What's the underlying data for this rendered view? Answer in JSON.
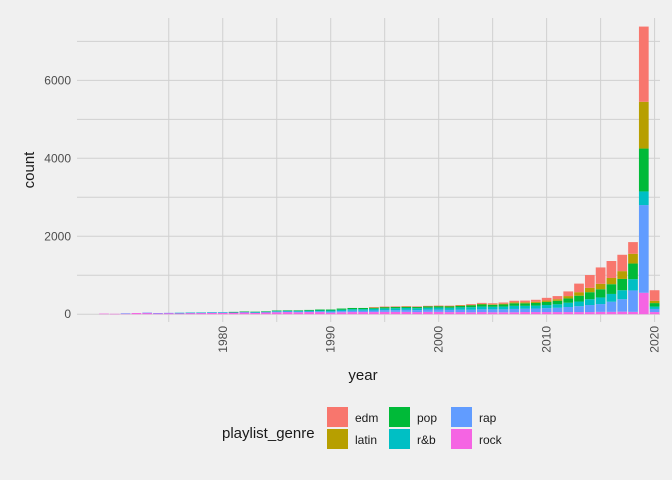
{
  "chart_data": {
    "type": "bar",
    "stacked": true,
    "xlabel": "year",
    "ylabel": "count",
    "xlim": [
      1966.5,
      2020.5
    ],
    "ylim": [
      -200,
      7600
    ],
    "x_ticks": [
      1980,
      1990,
      2000,
      2010,
      2020
    ],
    "y_ticks": [
      0,
      2000,
      4000,
      6000
    ],
    "grid": true,
    "legend_title": "playlist_genre",
    "legend_position": "bottom",
    "x": [
      1969,
      1970,
      1971,
      1972,
      1973,
      1974,
      1975,
      1976,
      1977,
      1978,
      1979,
      1980,
      1981,
      1982,
      1983,
      1984,
      1985,
      1986,
      1987,
      1988,
      1989,
      1990,
      1991,
      1992,
      1993,
      1994,
      1995,
      1996,
      1997,
      1998,
      1999,
      2000,
      2001,
      2002,
      2003,
      2004,
      2005,
      2006,
      2007,
      2008,
      2009,
      2010,
      2011,
      2012,
      2013,
      2014,
      2015,
      2016,
      2017,
      2018,
      2019,
      2020
    ],
    "series": [
      {
        "name": "rock",
        "color": "#F564E3",
        "values": [
          15,
          10,
          20,
          30,
          35,
          25,
          30,
          30,
          35,
          35,
          40,
          40,
          45,
          45,
          35,
          45,
          50,
          55,
          50,
          55,
          55,
          40,
          50,
          55,
          55,
          55,
          60,
          60,
          60,
          55,
          60,
          60,
          55,
          55,
          50,
          55,
          50,
          50,
          50,
          55,
          55,
          55,
          55,
          55,
          55,
          55,
          60,
          60,
          65,
          60,
          550,
          55
        ]
      },
      {
        "name": "rap",
        "color": "#619CFF",
        "values": [
          0,
          0,
          2,
          0,
          5,
          5,
          5,
          5,
          5,
          5,
          5,
          5,
          5,
          10,
          10,
          10,
          15,
          15,
          15,
          15,
          20,
          25,
          30,
          35,
          35,
          40,
          45,
          45,
          50,
          50,
          55,
          55,
          55,
          60,
          65,
          70,
          75,
          75,
          85,
          85,
          90,
          100,
          110,
          130,
          150,
          180,
          200,
          260,
          320,
          550,
          2250,
          80
        ]
      },
      {
        "name": "r&b",
        "color": "#00BFC4",
        "values": [
          0,
          0,
          0,
          0,
          0,
          0,
          0,
          2,
          2,
          5,
          5,
          5,
          5,
          10,
          10,
          10,
          15,
          15,
          20,
          20,
          20,
          30,
          35,
          40,
          40,
          45,
          45,
          50,
          50,
          50,
          50,
          55,
          55,
          60,
          65,
          70,
          65,
          70,
          80,
          75,
          75,
          80,
          90,
          110,
          120,
          150,
          170,
          200,
          230,
          290,
          350,
          60
        ]
      },
      {
        "name": "pop",
        "color": "#00BA38",
        "values": [
          0,
          0,
          0,
          0,
          0,
          0,
          0,
          0,
          0,
          0,
          0,
          0,
          5,
          5,
          10,
          10,
          15,
          15,
          15,
          20,
          25,
          25,
          30,
          30,
          30,
          30,
          35,
          35,
          35,
          35,
          40,
          40,
          40,
          40,
          50,
          55,
          50,
          55,
          65,
          65,
          70,
          80,
          90,
          110,
          150,
          180,
          210,
          250,
          290,
          400,
          1100,
          90
        ]
      },
      {
        "name": "latin",
        "color": "#B79F00",
        "values": [
          0,
          0,
          0,
          0,
          0,
          0,
          0,
          0,
          0,
          0,
          0,
          0,
          0,
          0,
          0,
          0,
          0,
          0,
          0,
          0,
          0,
          0,
          0,
          0,
          0,
          5,
          5,
          5,
          5,
          5,
          5,
          5,
          5,
          10,
          10,
          15,
          15,
          20,
          25,
          25,
          30,
          35,
          40,
          60,
          90,
          110,
          140,
          160,
          200,
          250,
          1200,
          60
        ]
      },
      {
        "name": "edm",
        "color": "#F8766D",
        "values": [
          0,
          0,
          0,
          0,
          0,
          0,
          0,
          0,
          0,
          0,
          0,
          0,
          0,
          0,
          0,
          0,
          0,
          0,
          0,
          0,
          0,
          0,
          0,
          0,
          0,
          5,
          5,
          5,
          5,
          5,
          5,
          5,
          10,
          10,
          20,
          25,
          25,
          30,
          40,
          45,
          50,
          70,
          80,
          120,
          220,
          330,
          420,
          435,
          420,
          300,
          1930,
          270
        ]
      }
    ]
  }
}
